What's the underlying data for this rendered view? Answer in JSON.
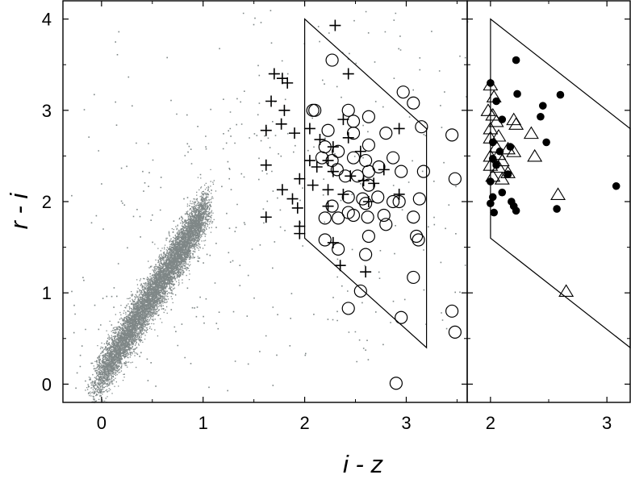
{
  "chart_data": [
    {
      "type": "scatter",
      "xlabel": "i - z",
      "ylabel": "r - i",
      "xlim": [
        -0.38,
        3.6
      ],
      "ylim": [
        -0.2,
        4.2
      ],
      "xticks": [
        "0",
        "1",
        "2",
        "3"
      ],
      "yticks": [
        "0",
        "1",
        "2",
        "3",
        "4"
      ],
      "background_cloud": {
        "color": "#7f8787",
        "description_of_trend": "dense stellar locus",
        "ridge": [
          [
            0.0,
            0.1
          ],
          [
            0.3,
            0.55
          ],
          [
            0.6,
            1.05
          ],
          [
            0.9,
            1.55
          ],
          [
            1.0,
            1.75
          ]
        ]
      },
      "selection_box": [
        [
          2.0,
          4.0
        ],
        [
          3.2,
          2.8
        ],
        [
          3.2,
          0.4
        ],
        [
          2.0,
          1.6
        ]
      ],
      "series": [
        {
          "marker": "plus",
          "points": [
            [
              1.7,
              3.4
            ],
            [
              1.78,
              3.35
            ],
            [
              1.83,
              3.3
            ],
            [
              2.43,
              3.4
            ],
            [
              2.3,
              3.93
            ],
            [
              1.67,
              3.1
            ],
            [
              1.8,
              3.0
            ],
            [
              1.77,
              2.85
            ],
            [
              1.62,
              2.78
            ],
            [
              1.9,
              2.75
            ],
            [
              2.05,
              2.8
            ],
            [
              2.15,
              2.68
            ],
            [
              2.28,
              2.6
            ],
            [
              2.43,
              2.7
            ],
            [
              2.55,
              2.55
            ],
            [
              2.05,
              2.45
            ],
            [
              2.12,
              2.38
            ],
            [
              2.28,
              2.33
            ],
            [
              2.45,
              2.28
            ],
            [
              2.58,
              2.23
            ],
            [
              1.62,
              2.4
            ],
            [
              1.95,
              2.25
            ],
            [
              2.08,
              2.18
            ],
            [
              2.23,
              2.13
            ],
            [
              2.38,
              2.08
            ],
            [
              2.23,
              2.45
            ],
            [
              1.78,
              2.13
            ],
            [
              1.88,
              2.03
            ],
            [
              1.93,
              1.93
            ],
            [
              1.62,
              1.83
            ],
            [
              1.95,
              1.73
            ],
            [
              1.95,
              1.65
            ],
            [
              2.23,
              1.95
            ],
            [
              2.63,
              2.0
            ],
            [
              2.93,
              2.08
            ],
            [
              2.78,
              2.35
            ],
            [
              2.68,
              2.2
            ],
            [
              2.38,
              2.9
            ],
            [
              2.93,
              2.8
            ],
            [
              2.28,
              1.55
            ],
            [
              2.35,
              1.3
            ],
            [
              2.6,
              1.23
            ]
          ]
        },
        {
          "marker": "circle-open",
          "points": [
            [
              2.27,
              3.55
            ],
            [
              2.97,
              3.2
            ],
            [
              3.07,
              3.08
            ],
            [
              2.1,
              3.0
            ],
            [
              2.43,
              3.0
            ],
            [
              2.08,
              3.0
            ],
            [
              2.63,
              2.93
            ],
            [
              2.48,
              2.88
            ],
            [
              3.15,
              2.82
            ],
            [
              3.45,
              2.73
            ],
            [
              2.23,
              2.78
            ],
            [
              2.48,
              2.75
            ],
            [
              2.8,
              2.75
            ],
            [
              2.63,
              2.62
            ],
            [
              2.33,
              2.55
            ],
            [
              2.2,
              2.6
            ],
            [
              2.48,
              2.48
            ],
            [
              2.87,
              2.48
            ],
            [
              2.6,
              2.45
            ],
            [
              2.73,
              2.38
            ],
            [
              2.17,
              2.48
            ],
            [
              2.27,
              2.45
            ],
            [
              2.32,
              2.35
            ],
            [
              2.63,
              2.33
            ],
            [
              2.95,
              2.33
            ],
            [
              3.17,
              2.33
            ],
            [
              2.52,
              2.28
            ],
            [
              2.63,
              2.18
            ],
            [
              3.48,
              2.25
            ],
            [
              2.4,
              2.28
            ],
            [
              2.43,
              2.05
            ],
            [
              2.57,
              2.03
            ],
            [
              2.72,
              2.05
            ],
            [
              2.93,
              2.0
            ],
            [
              3.13,
              2.03
            ],
            [
              2.27,
              1.95
            ],
            [
              2.43,
              1.88
            ],
            [
              2.6,
              1.98
            ],
            [
              2.87,
              2.0
            ],
            [
              2.2,
              1.82
            ],
            [
              2.33,
              1.82
            ],
            [
              2.48,
              1.85
            ],
            [
              2.62,
              1.83
            ],
            [
              2.78,
              1.85
            ],
            [
              3.07,
              1.83
            ],
            [
              2.63,
              1.62
            ],
            [
              2.8,
              1.75
            ],
            [
              2.2,
              1.58
            ],
            [
              2.33,
              1.48
            ],
            [
              2.6,
              1.42
            ],
            [
              3.1,
              1.62
            ],
            [
              3.12,
              1.58
            ],
            [
              3.07,
              1.17
            ],
            [
              2.55,
              1.02
            ],
            [
              2.43,
              0.83
            ],
            [
              2.95,
              0.73
            ],
            [
              3.45,
              0.8
            ],
            [
              3.48,
              0.57
            ],
            [
              2.9,
              0.01
            ]
          ]
        }
      ]
    },
    {
      "type": "scatter",
      "xlim": [
        1.8,
        3.2
      ],
      "ylim": [
        -0.2,
        4.2
      ],
      "xticks": [
        "2",
        "3"
      ],
      "selection_box": [
        [
          2.0,
          4.0
        ],
        [
          3.2,
          2.8
        ],
        [
          3.2,
          0.4
        ],
        [
          2.0,
          1.6
        ]
      ],
      "series": [
        {
          "marker": "filled-circle",
          "points": [
            [
              2.0,
              3.3
            ],
            [
              2.22,
              3.55
            ],
            [
              2.05,
              3.1
            ],
            [
              2.23,
              3.18
            ],
            [
              2.45,
              3.05
            ],
            [
              2.6,
              3.17
            ],
            [
              2.43,
              2.93
            ],
            [
              2.1,
              2.9
            ],
            [
              2.02,
              2.65
            ],
            [
              2.17,
              2.6
            ],
            [
              2.08,
              2.55
            ],
            [
              2.48,
              2.65
            ],
            [
              2.02,
              2.47
            ],
            [
              2.05,
              2.4
            ],
            [
              2.15,
              2.3
            ],
            [
              2.0,
              2.22
            ],
            [
              2.1,
              2.1
            ],
            [
              2.02,
              2.05
            ],
            [
              2.18,
              2.0
            ],
            [
              2.2,
              1.95
            ],
            [
              2.22,
              1.9
            ],
            [
              2.03,
              1.88
            ],
            [
              2.57,
              1.92
            ],
            [
              3.08,
              2.17
            ],
            [
              2.0,
              1.98
            ]
          ]
        },
        {
          "marker": "triangle-open",
          "points": [
            [
              2.0,
              3.28
            ],
            [
              2.03,
              3.15
            ],
            [
              1.98,
              3.0
            ],
            [
              2.02,
              2.95
            ],
            [
              2.2,
              2.9
            ],
            [
              2.0,
              2.8
            ],
            [
              2.05,
              2.88
            ],
            [
              2.22,
              2.85
            ],
            [
              2.35,
              2.75
            ],
            [
              2.0,
              2.7
            ],
            [
              2.07,
              2.72
            ],
            [
              2.05,
              2.6
            ],
            [
              2.15,
              2.58
            ],
            [
              2.2,
              2.55
            ],
            [
              2.0,
              2.5
            ],
            [
              2.07,
              2.52
            ],
            [
              2.1,
              2.45
            ],
            [
              2.0,
              2.4
            ],
            [
              2.07,
              2.38
            ],
            [
              2.15,
              2.32
            ],
            [
              2.38,
              2.5
            ],
            [
              2.02,
              2.28
            ],
            [
              2.1,
              2.25
            ],
            [
              2.58,
              2.08
            ],
            [
              2.65,
              1.02
            ]
          ]
        }
      ]
    }
  ]
}
